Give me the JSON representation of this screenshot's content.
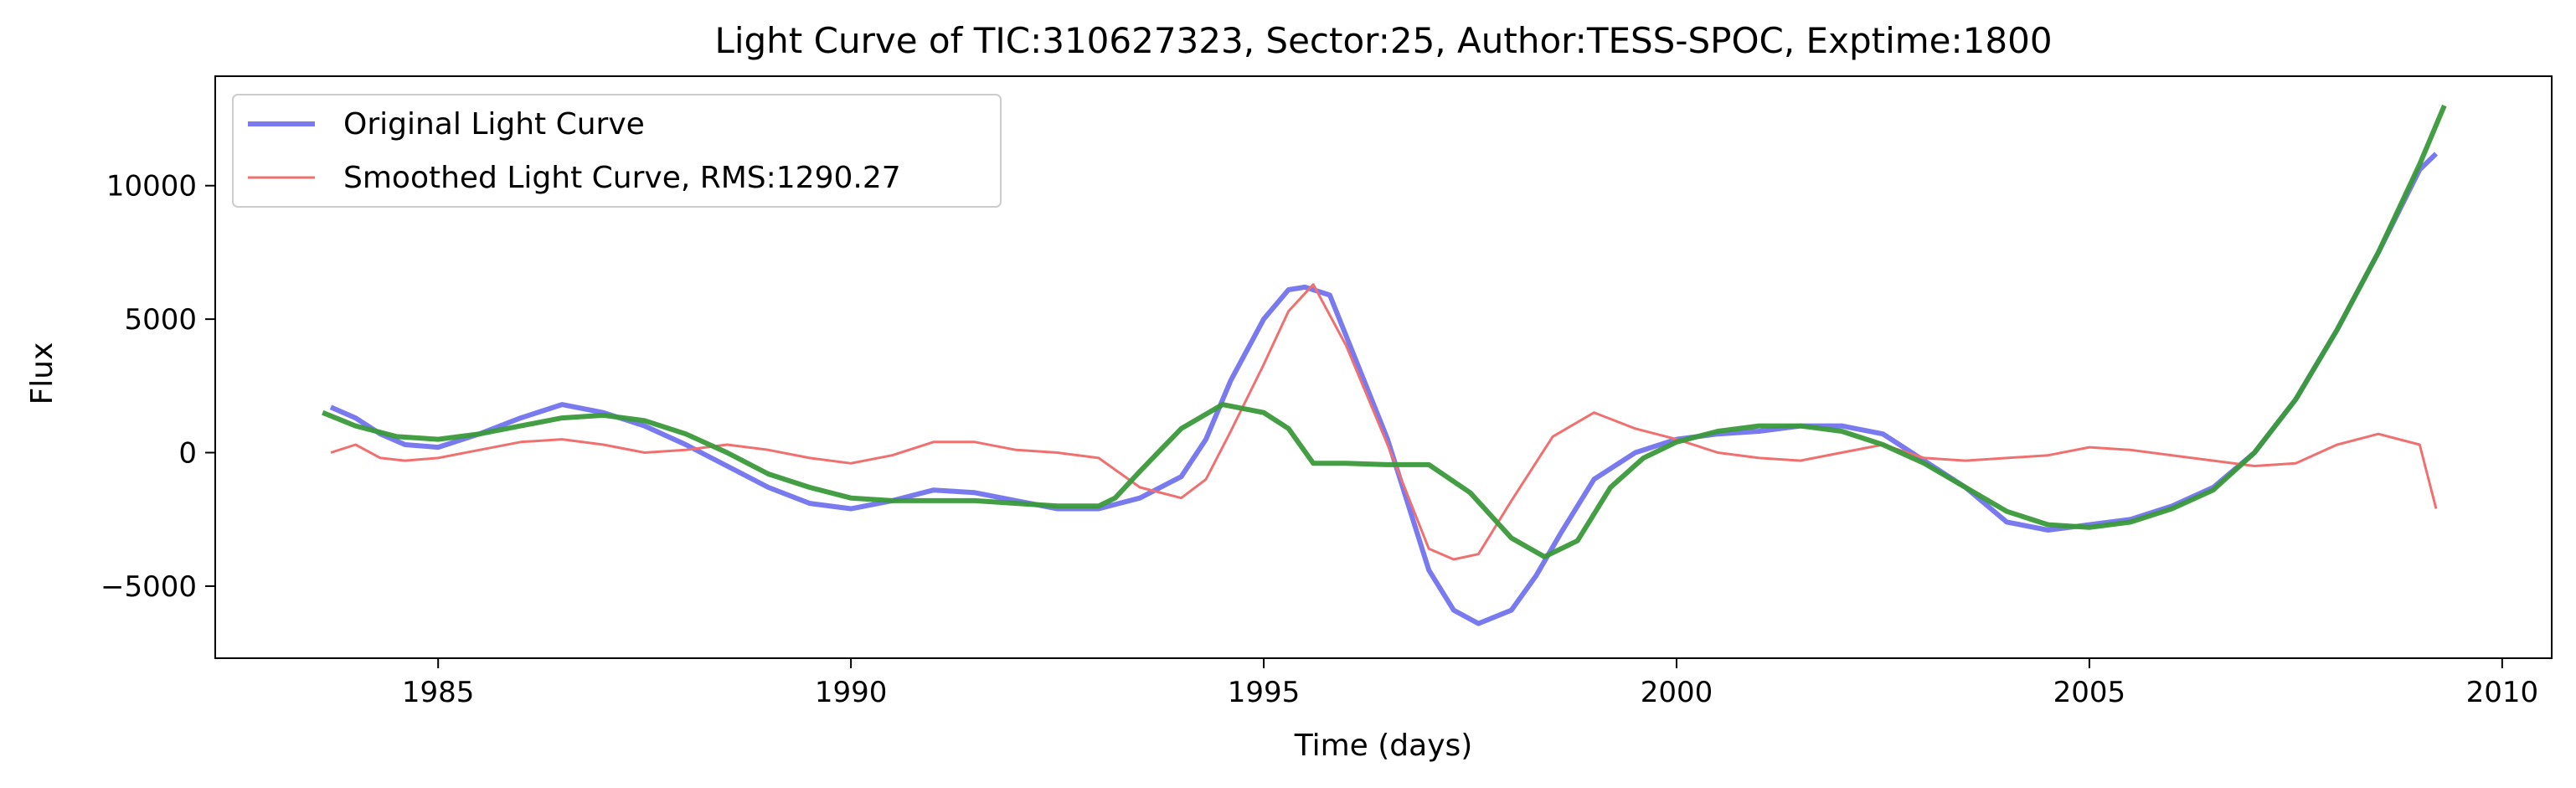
{
  "chart_data": {
    "type": "line",
    "title": "Light Curve of TIC:310627323, Sector:25, Author:TESS-SPOC, Exptime:1800",
    "xlabel": "Time (days)",
    "ylabel": "Flux",
    "xlim": [
      1982.3,
      2010.6
    ],
    "ylim": [
      -7700,
      14100
    ],
    "xticks": [
      1985,
      1990,
      1995,
      2000,
      2005,
      2010
    ],
    "yticks": [
      -5000,
      0,
      5000,
      10000
    ],
    "ytick_labels": [
      "−5000",
      "0",
      "5000",
      "10000"
    ],
    "grid": false,
    "legend_position": "upper-left",
    "series": [
      {
        "name": "Original Light Curve",
        "color": "#7a7af0",
        "x": [
          1983.7,
          1984.0,
          1984.3,
          1984.6,
          1985.0,
          1985.5,
          1986.0,
          1986.5,
          1987.0,
          1987.5,
          1988.0,
          1988.5,
          1989.0,
          1989.5,
          1990.0,
          1990.5,
          1991.0,
          1991.5,
          1992.0,
          1992.5,
          1993.0,
          1993.5,
          1994.0,
          1994.3,
          1994.6,
          1995.0,
          1995.3,
          1995.5,
          1995.8,
          1996.5,
          1997.0,
          1997.3,
          1997.6,
          1998.0,
          1998.3,
          1998.6,
          1999.0,
          1999.5,
          2000.0,
          2000.5,
          2001.0,
          2001.5,
          2002.0,
          2002.5,
          2003.0,
          2003.5,
          2004.0,
          2004.5,
          2005.0,
          2005.5,
          2006.0,
          2006.5,
          2007.0,
          2007.5,
          2008.0,
          2008.5,
          2009.0,
          2009.2
        ],
        "values": [
          1700,
          1300,
          700,
          300,
          200,
          700,
          1300,
          1800,
          1500,
          1000,
          300,
          -500,
          -1300,
          -1900,
          -2100,
          -1800,
          -1400,
          -1500,
          -1800,
          -2100,
          -2100,
          -1700,
          -900,
          500,
          2700,
          5000,
          6100,
          6200,
          5900,
          500,
          -4400,
          -5900,
          -6400,
          -5900,
          -4600,
          -3000,
          -1000,
          0,
          500,
          700,
          800,
          1000,
          1000,
          700,
          -300,
          -1300,
          -2600,
          -2900,
          -2700,
          -2500,
          -2000,
          -1300,
          0,
          2000,
          4600,
          7500,
          10600,
          11200
        ]
      },
      {
        "name": "Smoothed Light Curve, RMS:1290.27",
        "color": "#f07070",
        "x": [
          1983.7,
          1984.0,
          1984.3,
          1984.6,
          1985.0,
          1985.5,
          1986.0,
          1986.5,
          1987.0,
          1987.5,
          1988.0,
          1988.5,
          1989.0,
          1989.5,
          1990.0,
          1990.5,
          1991.0,
          1991.5,
          1992.0,
          1992.5,
          1993.0,
          1993.5,
          1994.0,
          1994.3,
          1994.6,
          1995.0,
          1995.3,
          1995.6,
          1996.0,
          1996.5,
          1997.0,
          1997.3,
          1997.6,
          1998.0,
          1998.5,
          1999.0,
          1999.5,
          2000.0,
          2000.5,
          2001.0,
          2001.5,
          2002.0,
          2002.5,
          2003.0,
          2003.5,
          2004.0,
          2004.5,
          2005.0,
          2005.5,
          2006.0,
          2006.5,
          2007.0,
          2007.5,
          2008.0,
          2008.5,
          2009.0,
          2009.2
        ],
        "values": [
          0,
          300,
          -200,
          -300,
          -200,
          100,
          400,
          500,
          300,
          0,
          100,
          300,
          100,
          -200,
          -400,
          -100,
          400,
          400,
          100,
          0,
          -200,
          -1300,
          -1700,
          -1000,
          800,
          3300,
          5300,
          6300,
          4000,
          300,
          -3600,
          -4000,
          -3800,
          -1800,
          600,
          1500,
          900,
          500,
          0,
          -200,
          -300,
          0,
          300,
          -200,
          -300,
          -200,
          -100,
          200,
          100,
          -100,
          -300,
          -500,
          -400,
          300,
          700,
          300,
          -2100
        ]
      },
      {
        "name": "",
        "color": "#3a9a3a",
        "x": [
          1983.6,
          1984.0,
          1984.5,
          1985.0,
          1985.5,
          1986.0,
          1986.5,
          1987.0,
          1987.5,
          1988.0,
          1988.5,
          1989.0,
          1989.5,
          1990.0,
          1990.5,
          1991.0,
          1991.5,
          1992.0,
          1992.5,
          1993.0,
          1993.2,
          1993.5,
          1994.0,
          1994.5,
          1995.0,
          1995.3,
          1995.6,
          1996.0,
          1996.5,
          1997.0,
          1997.5,
          1998.0,
          1998.4,
          1998.8,
          1999.2,
          1999.6,
          2000.0,
          2000.5,
          2001.0,
          2001.5,
          2002.0,
          2002.5,
          2003.0,
          2003.5,
          2004.0,
          2004.5,
          2005.0,
          2005.5,
          2006.0,
          2006.5,
          2007.0,
          2007.5,
          2008.0,
          2008.5,
          2009.0,
          2009.3
        ],
        "values": [
          1500,
          1000,
          600,
          500,
          700,
          1000,
          1300,
          1400,
          1200,
          700,
          0,
          -800,
          -1300,
          -1700,
          -1800,
          -1800,
          -1800,
          -1900,
          -2000,
          -2000,
          -1700,
          -700,
          900,
          1800,
          1500,
          900,
          -400,
          -400,
          -450,
          -450,
          -1500,
          -3200,
          -3900,
          -3300,
          -1300,
          -200,
          400,
          800,
          1000,
          1000,
          800,
          300,
          -400,
          -1300,
          -2200,
          -2700,
          -2800,
          -2600,
          -2100,
          -1400,
          0,
          2000,
          4600,
          7500,
          10800,
          13000
        ]
      }
    ],
    "legend": {
      "entries": [
        "Original Light Curve",
        "Smoothed Light Curve, RMS:1290.27"
      ]
    }
  }
}
